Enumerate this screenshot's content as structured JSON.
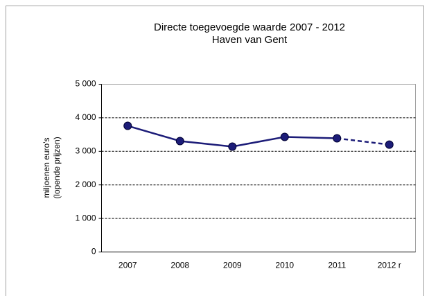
{
  "chart_data": {
    "type": "line",
    "title": [
      "Directe toegevoegde waarde 2007  - 2012",
      "Haven van Gent"
    ],
    "y_label": [
      "miljoenen euro's",
      "(lopende prijzen)"
    ],
    "categories": [
      "2007",
      "2008",
      "2009",
      "2010",
      "2011",
      "2012 r"
    ],
    "values": [
      3760,
      3306,
      3140,
      3430,
      3388,
      3200
    ],
    "color": "#1c1c78",
    "segment_styles": [
      "solid",
      "solid",
      "solid",
      "solid",
      "dashed"
    ],
    "ylim": [
      0,
      5000
    ],
    "yticks": [
      0,
      {
        "value": 1000,
        "label": "1 000"
      },
      {
        "value": 2000,
        "label": "2 000"
      },
      {
        "value": 3000,
        "label": "3 000"
      },
      {
        "value": 4000,
        "label": "4 000"
      },
      {
        "value": 5000,
        "label": "5 000"
      }
    ],
    "grid": true
  }
}
